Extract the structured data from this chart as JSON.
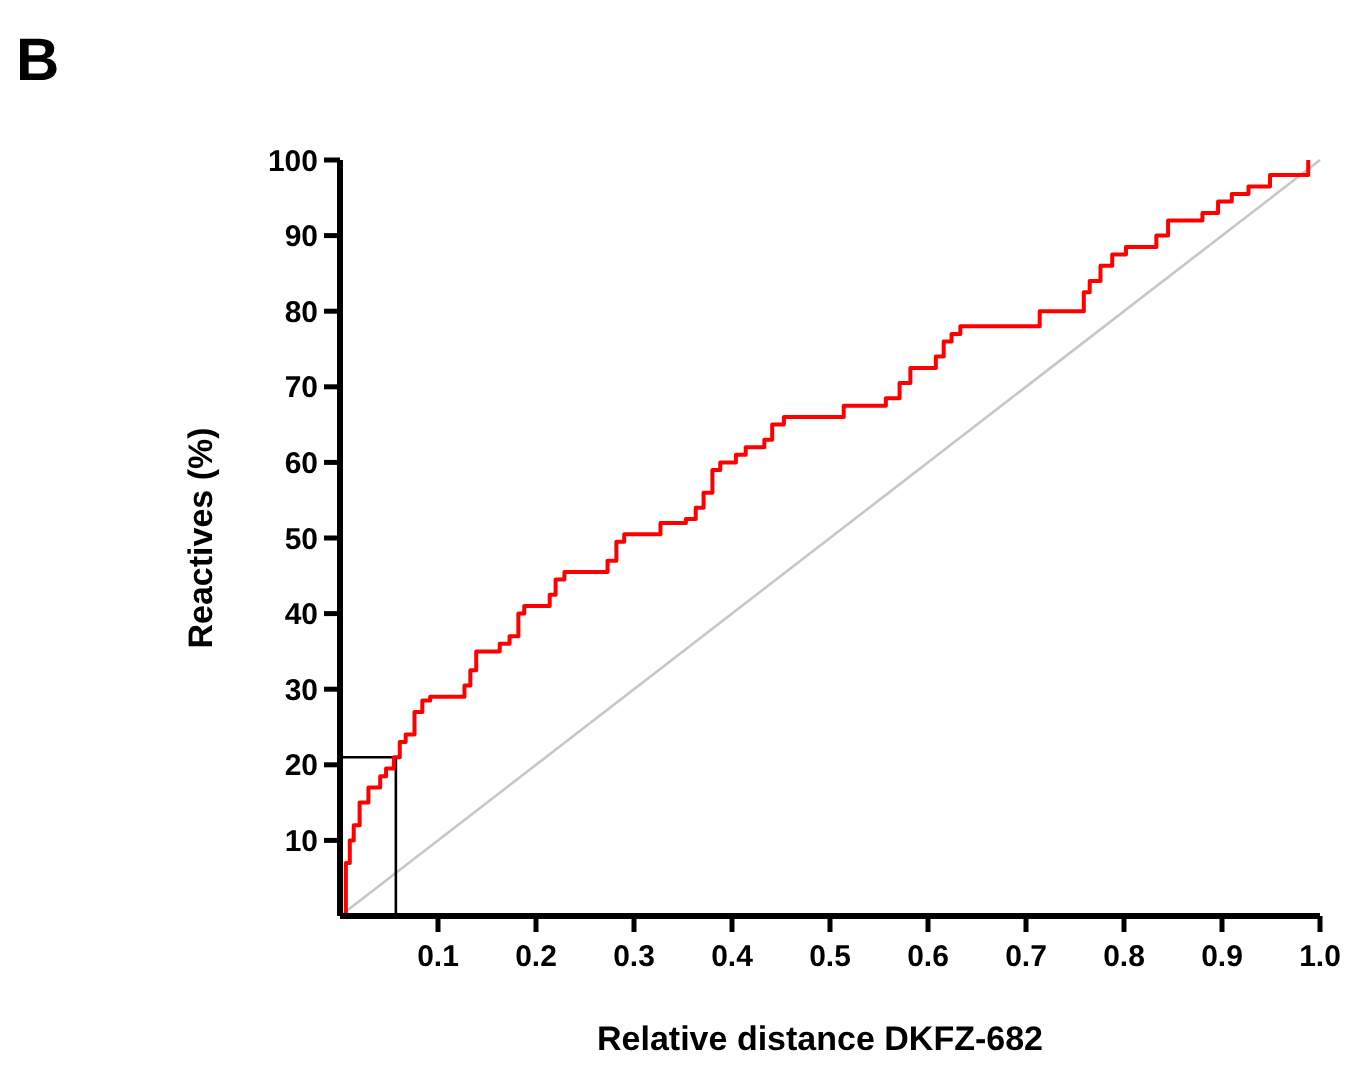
{
  "chart_data": {
    "type": "step",
    "title": "B",
    "xlabel": "Relative distance DKFZ-682",
    "ylabel": "Reactives (%)",
    "xlim": [
      0,
      1
    ],
    "ylim": [
      0,
      100
    ],
    "xticks": [
      0.1,
      0.2,
      0.3,
      0.4,
      0.5,
      0.6,
      0.7,
      0.8,
      0.9,
      {
        "value": 1,
        "label": "1.0"
      }
    ],
    "yticks": [
      10,
      20,
      30,
      40,
      50,
      60,
      70,
      80,
      90,
      100
    ],
    "grid": false,
    "series": [
      {
        "type": "line",
        "color": "#c8c8c8",
        "x": [
          0,
          1
        ],
        "values": [
          0,
          100
        ]
      },
      {
        "type": "line",
        "color": "#000000",
        "x": [
          0,
          0.057,
          0.057
        ],
        "values": [
          21,
          21,
          0
        ]
      },
      {
        "color": "#ff0000",
        "x": [
          0,
          0.006,
          0.01,
          0.014,
          0.02,
          0.029,
          0.041,
          0.047,
          0.055,
          0.061,
          0.067,
          0.076,
          0.084,
          0.092,
          0.127,
          0.133,
          0.139,
          0.163,
          0.173,
          0.182,
          0.188,
          0.214,
          0.22,
          0.229,
          0.273,
          0.282,
          0.29,
          0.327,
          0.353,
          0.363,
          0.371,
          0.38,
          0.388,
          0.404,
          0.414,
          0.433,
          0.441,
          0.453,
          0.514,
          0.557,
          0.571,
          0.582,
          0.608,
          0.616,
          0.624,
          0.633,
          0.714,
          0.759,
          0.765,
          0.776,
          0.788,
          0.802,
          0.833,
          0.845,
          0.88,
          0.896,
          0.91,
          0.927,
          0.949,
          0.988
        ],
        "values": [
          0,
          7,
          10,
          12,
          15,
          17,
          18.5,
          19.5,
          21,
          23,
          24,
          27,
          28.5,
          29,
          30.5,
          32.5,
          35,
          36,
          37,
          40,
          41,
          42.5,
          44.5,
          45.5,
          47,
          49.5,
          50.5,
          52,
          52.5,
          54,
          56,
          59,
          60,
          61,
          62,
          63,
          65,
          66,
          67.5,
          68.5,
          70.5,
          72.5,
          74,
          76,
          77,
          78,
          80,
          82.5,
          84,
          86,
          87.5,
          88.5,
          90,
          92,
          93,
          94.5,
          95.5,
          96.5,
          98,
          100
        ]
      }
    ]
  }
}
